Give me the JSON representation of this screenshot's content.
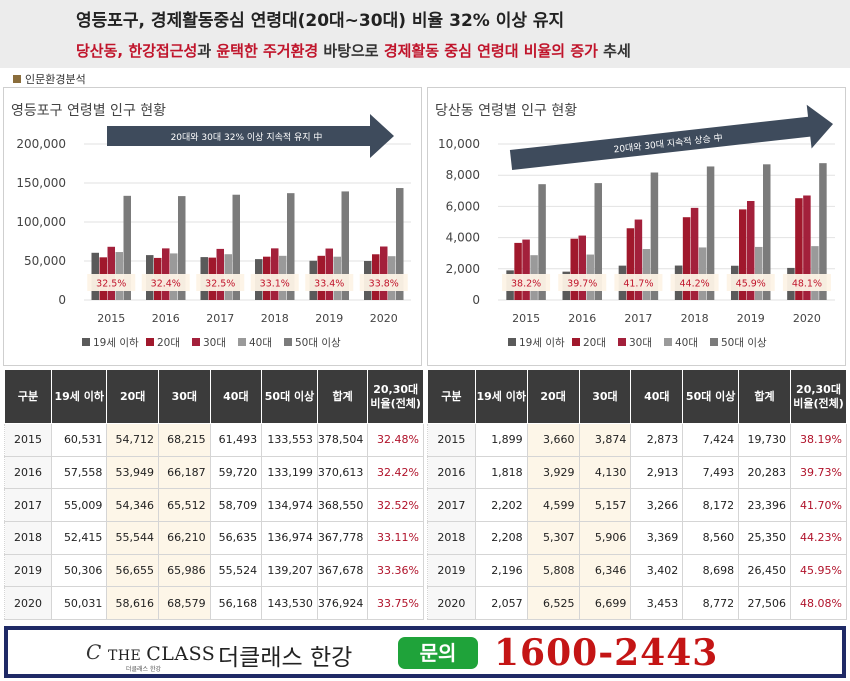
{
  "header": {
    "title": "영등포구, 경제활동중심 연령대(20대~30대) 비율 32% 이상 유지",
    "subtitle_parts": [
      {
        "text": "당산동, 한강접근성",
        "red": true
      },
      {
        "text": "과 ",
        "red": false
      },
      {
        "text": "윤택한 주거환경",
        "red": true
      },
      {
        "text": " 바탕으로 ",
        "red": false
      },
      {
        "text": "경제활동 중심 연령대 비율의 증가",
        "red": true
      },
      {
        "text": " 추세",
        "red": false
      }
    ]
  },
  "section_label": "인문환경분석",
  "colors": {
    "under19": "#5a5a5a",
    "age20": "#a0182c",
    "age30": "#a3203b",
    "age40": "#9a9a9a",
    "age50": "#7b7b7b",
    "arrow": "#3e4b5c",
    "ratio_box": "#fdf3e6",
    "ratio_text": "#c0142b",
    "phone": "#c41515",
    "inquiry": "#1fa33a",
    "footer_border": "#1f2a66"
  },
  "legend": [
    "19세 이하",
    "20대",
    "30대",
    "40대",
    "50대 이상"
  ],
  "chart_data": [
    {
      "type": "bar",
      "title": "영등포구 연령별 인구 현황",
      "arrow_text": "20대와 30대  32% 이상 지속적 유지 中",
      "categories": [
        "2015",
        "2016",
        "2017",
        "2018",
        "2019",
        "2020"
      ],
      "ylim": [
        0,
        200000
      ],
      "yticks": [
        0,
        50000,
        100000,
        150000,
        200000
      ],
      "ytick_labels": [
        "0",
        "50,000",
        "100,000",
        "150,000",
        "200,000"
      ],
      "ratio_labels": [
        "32.5%",
        "32.4%",
        "32.5%",
        "33.1%",
        "33.4%",
        "33.8%"
      ],
      "series": [
        {
          "name": "19세 이하",
          "values": [
            60531,
            57558,
            55009,
            52415,
            50306,
            50031
          ]
        },
        {
          "name": "20대",
          "values": [
            54712,
            53949,
            54346,
            55544,
            56655,
            58616
          ]
        },
        {
          "name": "30대",
          "values": [
            68215,
            66187,
            65512,
            66210,
            65986,
            68579
          ]
        },
        {
          "name": "40대",
          "values": [
            61493,
            59720,
            58709,
            56635,
            55524,
            56168
          ]
        },
        {
          "name": "50대 이상",
          "values": [
            133553,
            133199,
            134974,
            136974,
            139207,
            143530
          ]
        }
      ],
      "grid": true,
      "legend_position": "bottom"
    },
    {
      "type": "bar",
      "title": "당산동 연령별 인구 현황",
      "arrow_text": "20대와 30대 지속적 상승 中",
      "categories": [
        "2015",
        "2016",
        "2017",
        "2018",
        "2019",
        "2020"
      ],
      "ylim": [
        0,
        10000
      ],
      "yticks": [
        0,
        2000,
        4000,
        6000,
        8000,
        10000
      ],
      "ytick_labels": [
        "0",
        "2,000",
        "4,000",
        "6,000",
        "8,000",
        "10,000"
      ],
      "ratio_labels": [
        "38.2%",
        "39.7%",
        "41.7%",
        "44.2%",
        "45.9%",
        "48.1%"
      ],
      "series": [
        {
          "name": "19세 이하",
          "values": [
            1899,
            1818,
            2202,
            2208,
            2196,
            2057
          ]
        },
        {
          "name": "20대",
          "values": [
            3660,
            3929,
            4599,
            5307,
            5808,
            6525
          ]
        },
        {
          "name": "30대",
          "values": [
            3874,
            4130,
            5157,
            5906,
            6346,
            6699
          ]
        },
        {
          "name": "40대",
          "values": [
            2873,
            2913,
            3266,
            3369,
            3402,
            3453
          ]
        },
        {
          "name": "50대 이상",
          "values": [
            7424,
            7493,
            8172,
            8560,
            8698,
            8772
          ]
        }
      ],
      "grid": true,
      "legend_position": "bottom"
    }
  ],
  "tables": [
    {
      "headers": [
        "구분",
        "19세 이하",
        "20대",
        "30대",
        "40대",
        "50대 이상",
        "합계",
        "20,30대 비율(전체)"
      ],
      "rows": [
        [
          "2015",
          "60,531",
          "54,712",
          "68,215",
          "61,493",
          "133,553",
          "378,504",
          "32.48%"
        ],
        [
          "2016",
          "57,558",
          "53,949",
          "66,187",
          "59,720",
          "133,199",
          "370,613",
          "32.42%"
        ],
        [
          "2017",
          "55,009",
          "54,346",
          "65,512",
          "58,709",
          "134,974",
          "368,550",
          "32.52%"
        ],
        [
          "2018",
          "52,415",
          "55,544",
          "66,210",
          "56,635",
          "136,974",
          "367,778",
          "33.11%"
        ],
        [
          "2019",
          "50,306",
          "56,655",
          "65,986",
          "55,524",
          "139,207",
          "367,678",
          "33.36%"
        ],
        [
          "2020",
          "50,031",
          "58,616",
          "68,579",
          "56,168",
          "143,530",
          "376,924",
          "33.75%"
        ]
      ]
    },
    {
      "headers": [
        "구분",
        "19세 이하",
        "20대",
        "30대",
        "40대",
        "50대 이상",
        "합계",
        "20,30대 비율(전체)"
      ],
      "rows": [
        [
          "2015",
          "1,899",
          "3,660",
          "3,874",
          "2,873",
          "7,424",
          "19,730",
          "38.19%"
        ],
        [
          "2016",
          "1,818",
          "3,929",
          "4,130",
          "2,913",
          "7,493",
          "20,283",
          "39.73%"
        ],
        [
          "2017",
          "2,202",
          "4,599",
          "5,157",
          "3,266",
          "8,172",
          "23,396",
          "41.70%"
        ],
        [
          "2018",
          "2,208",
          "5,307",
          "5,906",
          "3,369",
          "8,560",
          "25,350",
          "44.23%"
        ],
        [
          "2019",
          "2,196",
          "5,808",
          "6,346",
          "3,402",
          "8,698",
          "26,450",
          "45.95%"
        ],
        [
          "2020",
          "2,057",
          "6,525",
          "6,699",
          "3,453",
          "8,772",
          "27,506",
          "48.08%"
        ]
      ]
    }
  ],
  "footer": {
    "logo_mark": "C",
    "logo_text_the": "THE",
    "logo_text_class": "CLASS",
    "logo_sub": "더클래스 한강",
    "brand_name": "더클래스 한강",
    "inquiry_label": "문의",
    "phone": "1600-2443"
  }
}
